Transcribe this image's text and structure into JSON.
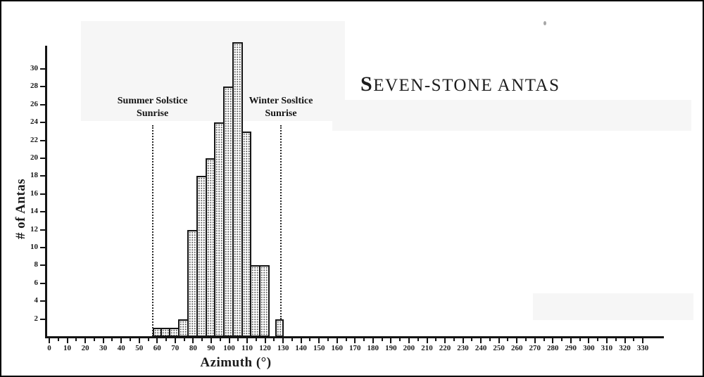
{
  "chart_data": {
    "type": "bar",
    "title": "SEVEN-STONE ANTAS",
    "xlabel": "Azimuth (°)",
    "ylabel": "# of Antas",
    "xlim": [
      0,
      335
    ],
    "ylim": [
      0,
      32.5
    ],
    "grid": false,
    "x_tick_values": [
      0,
      10,
      20,
      30,
      40,
      50,
      60,
      70,
      80,
      90,
      100,
      110,
      120,
      130,
      140,
      150,
      160,
      170,
      180,
      190,
      200,
      210,
      220,
      230,
      240,
      250,
      260,
      270,
      280,
      290,
      300,
      310,
      320,
      330
    ],
    "x_minor_tick_step": 5,
    "y_tick_values": [
      2,
      4,
      6,
      8,
      10,
      12,
      14,
      16,
      18,
      20,
      22,
      24,
      26,
      28,
      30
    ],
    "bars": [
      {
        "from": 57.5,
        "to": 62.5,
        "count": 1
      },
      {
        "from": 62.5,
        "to": 67.5,
        "count": 1
      },
      {
        "from": 67.5,
        "to": 72.5,
        "count": 1
      },
      {
        "from": 72.5,
        "to": 77.5,
        "count": 2
      },
      {
        "from": 77.5,
        "to": 82.5,
        "count": 12
      },
      {
        "from": 82.5,
        "to": 87.5,
        "count": 18
      },
      {
        "from": 87.5,
        "to": 92.5,
        "count": 20
      },
      {
        "from": 92.5,
        "to": 97.5,
        "count": 24
      },
      {
        "from": 97.5,
        "to": 102.5,
        "count": 28
      },
      {
        "from": 102.5,
        "to": 107.5,
        "count": 33
      },
      {
        "from": 107.5,
        "to": 112.5,
        "count": 23
      },
      {
        "from": 112.5,
        "to": 117.5,
        "count": 8
      },
      {
        "from": 117.5,
        "to": 122.5,
        "count": 8
      },
      {
        "from": 125.5,
        "to": 130.5,
        "count": 2
      }
    ],
    "annotations": [
      {
        "azimuth": 57.4,
        "label_line1": "Summer Solstice",
        "label_line2": "Sunrise"
      },
      {
        "azimuth": 128.8,
        "label_line1": "Winter Sosltice",
        "label_line2": "Sunrise"
      }
    ],
    "colors": {
      "ink": "#1a1a1a",
      "bar_dot": "#5d5d5d",
      "background": "#ffffff"
    }
  }
}
